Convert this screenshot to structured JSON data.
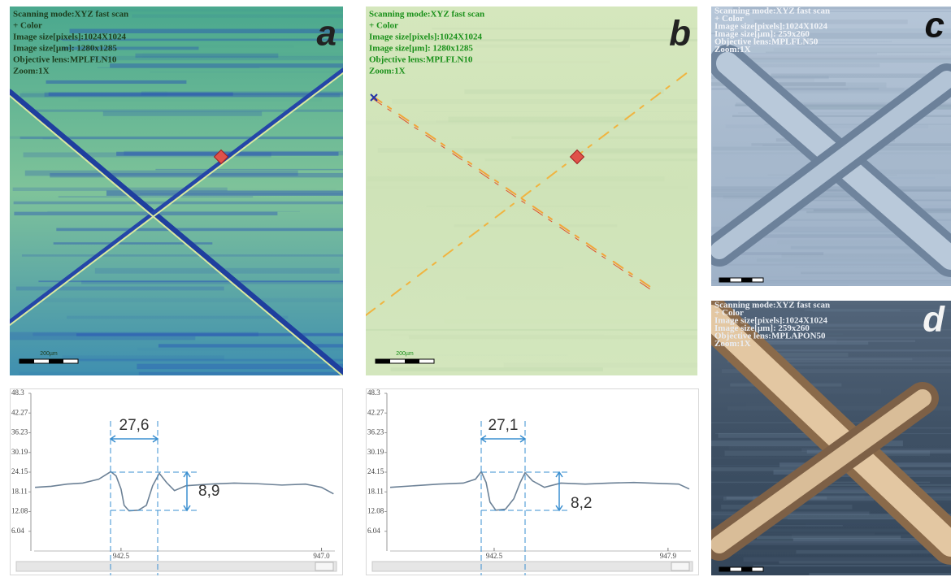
{
  "images": [
    {
      "label": "a",
      "scale_bar": "200µm",
      "overlay": [
        "Scanning mode:XYZ fast scan",
        "+ Color",
        "Image size[pixels]:1024X1024",
        "Image size[µm]: 1280x1285",
        "Objective lens:MPLFLN10",
        "Zoom:1X"
      ]
    },
    {
      "label": "b",
      "scale_bar": "200µm",
      "overlay": [
        "Scanning mode:XYZ fast scan",
        "+ Color",
        "Image size[pixels]:1024X1024",
        "Image size[µm]: 1280x1285",
        "Objective lens:MPLFLN10",
        "Zoom:1X"
      ]
    },
    {
      "label": "c",
      "overlay": [
        "Scanning mode:XYZ fast scan",
        "+ Color",
        "Image size[pixels]:1024X1024",
        "Image size[µm]: 259x260",
        "Objective lens:MPLFLN50",
        "Zoom:1X"
      ]
    },
    {
      "label": "d",
      "overlay": [
        "Scanning mode:XYZ fast scan",
        "+ Color",
        "Image size[pixels]:1024X1024",
        "Image size[µm]: 259x260",
        "Objective lens:MPLAPON50",
        "Zoom:1X"
      ]
    }
  ],
  "chart_data": [
    {
      "type": "line",
      "color": "#6c8196",
      "x": [
        940.57,
        940.93,
        941.29,
        941.64,
        942.0,
        942.27,
        942.39,
        942.5,
        942.57,
        942.68,
        942.89,
        943.07,
        943.21,
        943.36,
        943.52,
        943.7,
        943.96,
        944.5,
        945.04,
        945.57,
        946.11,
        946.64,
        947.0,
        947.27
      ],
      "values": [
        19.5,
        19.8,
        20.5,
        20.8,
        22,
        24.3,
        23,
        19,
        14,
        12.3,
        12.5,
        14,
        20,
        23.8,
        21,
        18.5,
        20,
        20.5,
        20.8,
        20.6,
        20.2,
        20.5,
        19.5,
        17.5
      ],
      "xlim": [
        940.55,
        947.3
      ],
      "xticks": [
        942.5,
        {
          "value": 947,
          "label": "947.0"
        }
      ],
      "ylim": [
        0,
        48.3
      ],
      "yticks": [
        48.3,
        42.27,
        36.23,
        30.19,
        24.15,
        18.11,
        12.08,
        6.04
      ],
      "annotations": [
        "27,6",
        "8,9"
      ]
    },
    {
      "type": "line",
      "color": "#6c8196",
      "x": [
        939.27,
        940.03,
        940.78,
        941.54,
        941.92,
        942.1,
        942.25,
        942.37,
        942.55,
        942.85,
        943.11,
        943.31,
        943.46,
        943.69,
        944.06,
        944.57,
        945.33,
        946.08,
        946.84,
        947.6,
        948.23,
        948.56
      ],
      "values": [
        19.5,
        20,
        20.5,
        20.8,
        22,
        24.3,
        21,
        15,
        12.5,
        12.8,
        16,
        21,
        24,
        21.5,
        19.5,
        20.8,
        20.5,
        20.8,
        21,
        20.7,
        20.5,
        19
      ],
      "xlim": [
        939.27,
        948.61
      ],
      "xticks": [
        942.5,
        947.9
      ],
      "ylim": [
        0,
        48.3
      ],
      "yticks": [
        48.3,
        42.27,
        36.23,
        30.19,
        24.15,
        18.11,
        12.08,
        6.04
      ],
      "annotations": [
        "27,1",
        "8,2"
      ]
    }
  ]
}
